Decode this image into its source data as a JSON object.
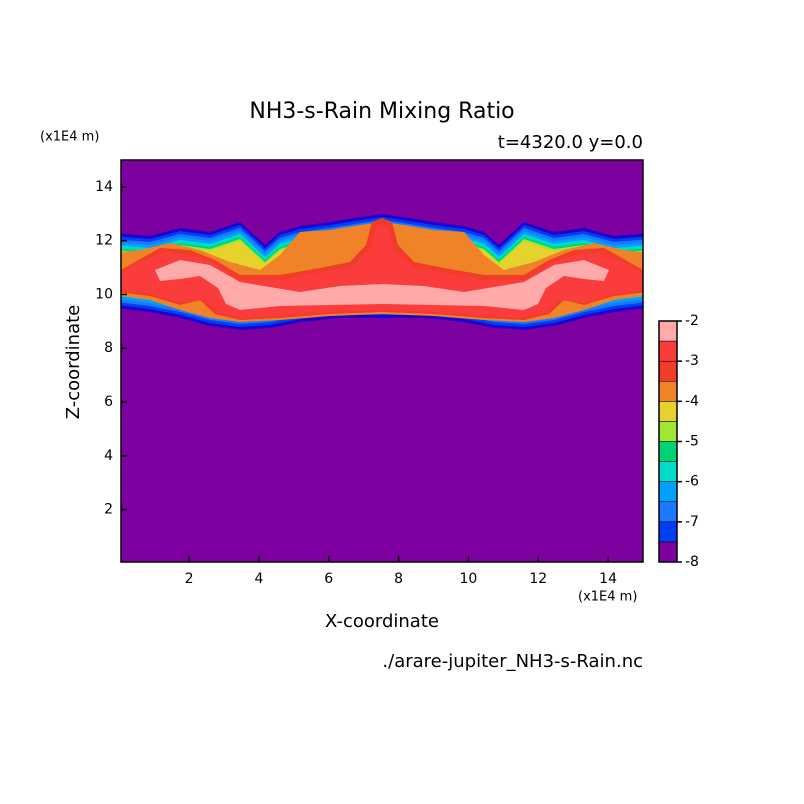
{
  "chart_data": {
    "type": "contour",
    "title": "NH3-s-Rain Mixing Ratio",
    "subtitle": "t=4320.0 y=0.0",
    "x_label": "X-coordinate",
    "y_label": "Z-coordinate",
    "x_unit": "(x1E4 m)",
    "y_unit": "(x1E4 m)",
    "source": "./arare-jupiter_NH3-s-Rain.nc",
    "xlim": [
      0.05,
      15
    ],
    "xticks": [
      2,
      4,
      6,
      8,
      10,
      12,
      14
    ],
    "ylim": [
      0.05,
      15
    ],
    "yticks": [
      2,
      4,
      6,
      8,
      10,
      12,
      14
    ],
    "colorbar": {
      "levels": [
        -8,
        -7.5,
        -7,
        -6.5,
        -6,
        -5.5,
        -5,
        -4.5,
        -4,
        -3.5,
        -3,
        -2.5,
        -2
      ],
      "colors": [
        "#7d00a0",
        "#1e00d2",
        "#0040f0",
        "#1e78ff",
        "#00a0ff",
        "#00dcc8",
        "#00d278",
        "#a0e632",
        "#e6d22c",
        "#f08228",
        "#f03c28",
        "#fa3c3c",
        "#ffaaaa"
      ],
      "ticks": [
        -8,
        -7,
        -6,
        -5,
        -4,
        -3,
        -2
      ]
    }
  }
}
